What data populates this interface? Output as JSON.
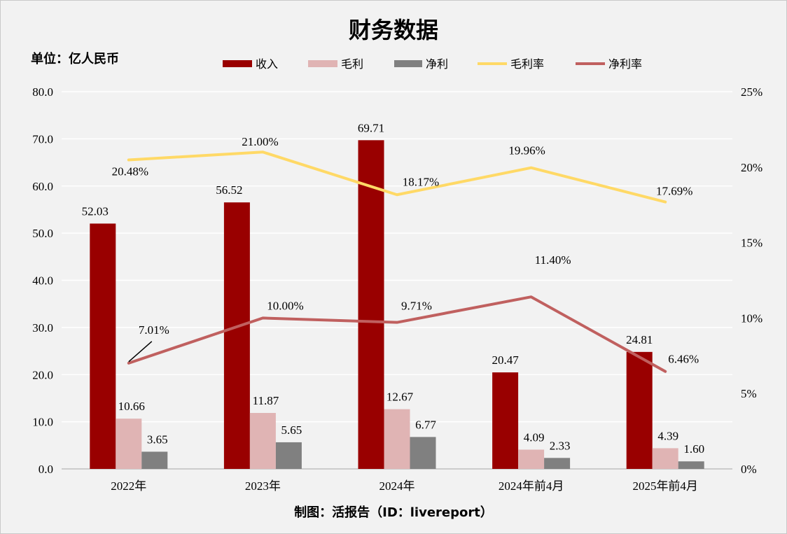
{
  "title": "财务数据",
  "unit": "单位：亿人民币",
  "footer": "制图：活报告（ID：livereport）",
  "chart_data": {
    "type": "bar",
    "title": "财务数据",
    "categories": [
      "2022年",
      "2023年",
      "2024年",
      "2024年前4月",
      "2025年前4月"
    ],
    "series": [
      {
        "name": "收入",
        "kind": "bar",
        "axis": "left",
        "color": "#990000",
        "values": [
          52.03,
          56.52,
          69.71,
          20.47,
          24.81
        ],
        "labels": [
          "52.03",
          "56.52",
          "69.71",
          "20.47",
          "24.81"
        ]
      },
      {
        "name": "毛利",
        "kind": "bar",
        "axis": "left",
        "color": "#e0b4b4",
        "values": [
          10.66,
          11.87,
          12.67,
          4.09,
          4.39
        ],
        "labels": [
          "10.66",
          "11.87",
          "12.67",
          "4.09",
          "4.39"
        ]
      },
      {
        "name": "净利",
        "kind": "bar",
        "axis": "left",
        "color": "#808080",
        "values": [
          3.65,
          5.65,
          6.77,
          2.33,
          1.6
        ],
        "labels": [
          "3.65",
          "5.65",
          "6.77",
          "2.33",
          "1.60"
        ]
      },
      {
        "name": "毛利率",
        "kind": "line",
        "axis": "right",
        "color": "#ffd966",
        "values": [
          20.48,
          21.0,
          18.17,
          19.96,
          17.69
        ],
        "labels": [
          "20.48%",
          "21.00%",
          "18.17%",
          "19.96%",
          "17.69%"
        ]
      },
      {
        "name": "净利率",
        "kind": "line",
        "axis": "right",
        "color": "#c0605f",
        "values": [
          7.01,
          10.0,
          9.71,
          11.4,
          6.46
        ],
        "labels": [
          "7.01%",
          "10.00%",
          "9.71%",
          "11.40%",
          "6.46%"
        ]
      }
    ],
    "y_left": {
      "min": 0,
      "max": 80,
      "step": 10,
      "ticks": [
        "0.0",
        "10.0",
        "20.0",
        "30.0",
        "40.0",
        "50.0",
        "60.0",
        "70.0",
        "80.0"
      ]
    },
    "y_right": {
      "min": 0,
      "max": 25,
      "step": 5,
      "ticks": [
        "0%",
        "5%",
        "10%",
        "15%",
        "20%",
        "25%"
      ]
    },
    "grid": true,
    "legend_position": "top-center"
  }
}
